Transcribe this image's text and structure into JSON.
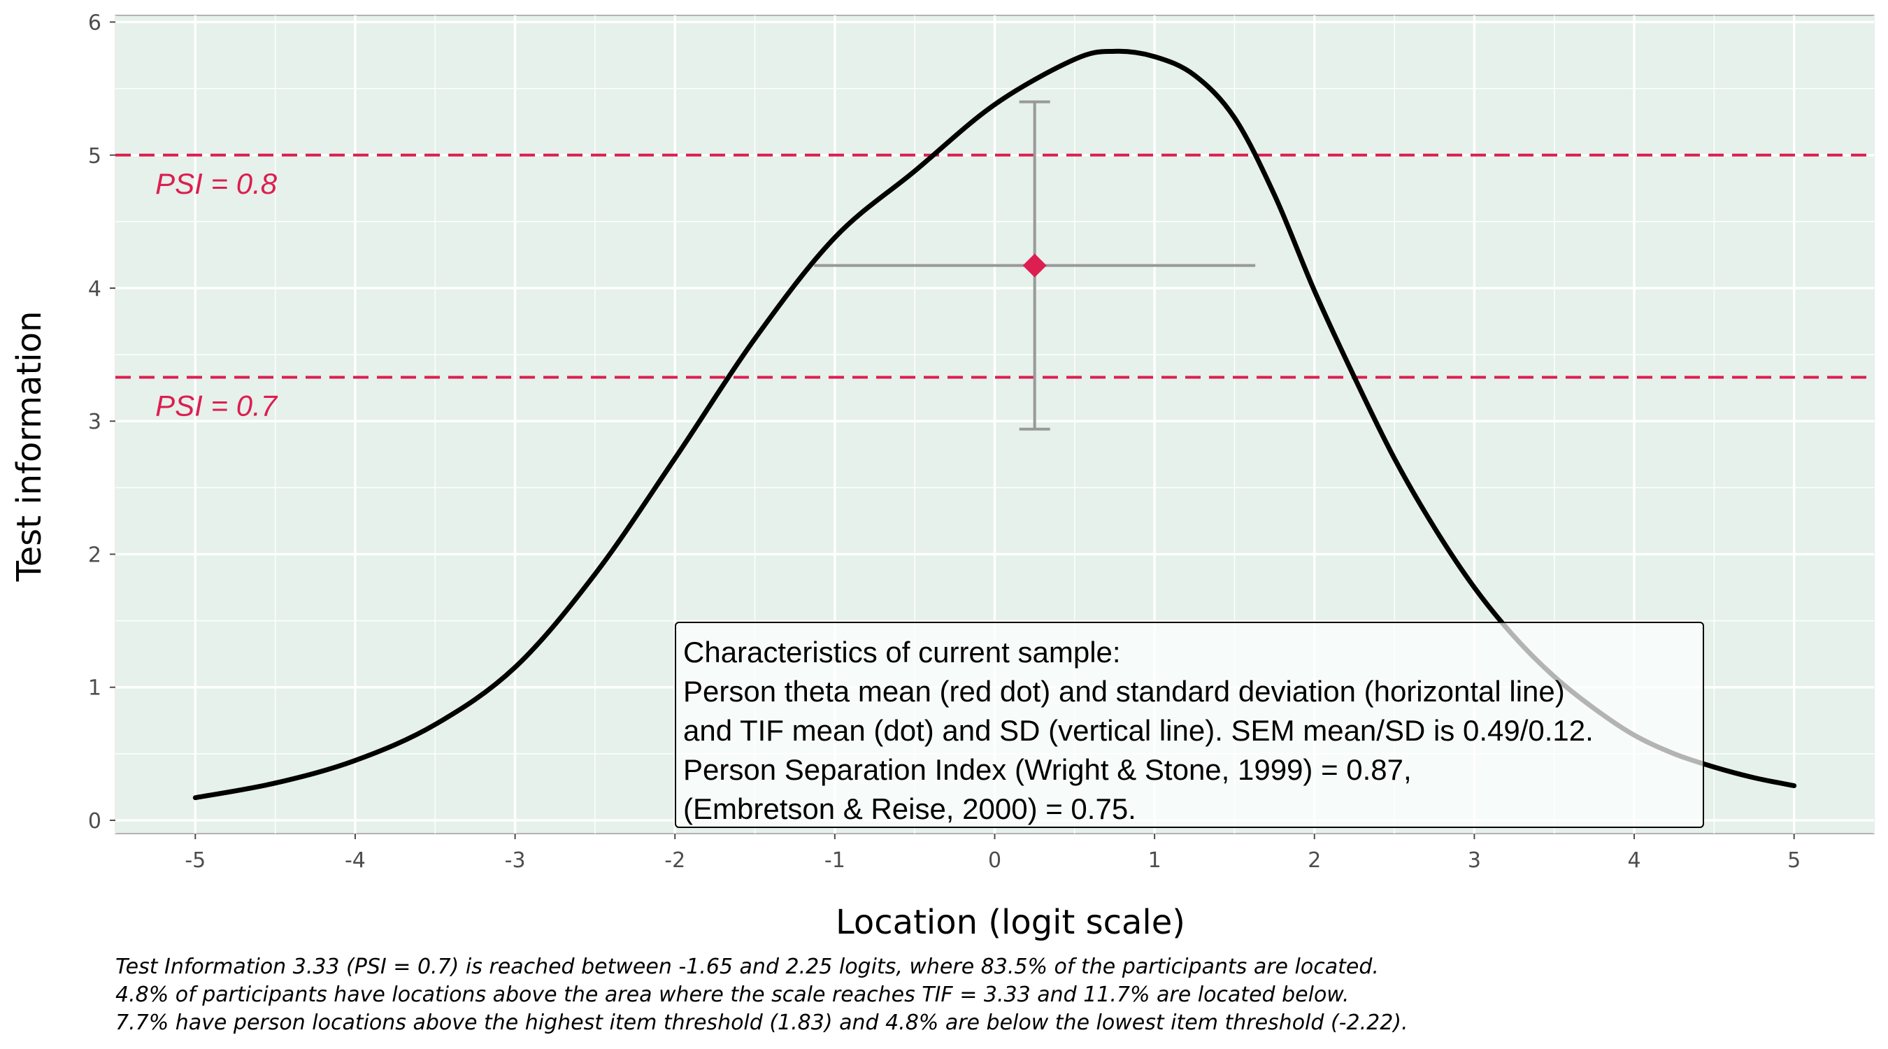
{
  "chart_data": {
    "type": "line",
    "xlabel": "Location (logit scale)",
    "ylabel": "Test information",
    "xlim": [
      -5.5,
      5.5
    ],
    "ylim": [
      -0.1,
      6.05
    ],
    "xticks": [
      -5,
      -4,
      -3,
      -2,
      -1,
      0,
      1,
      2,
      3,
      4,
      5
    ],
    "yticks": [
      0,
      1,
      2,
      3,
      4,
      5,
      6
    ],
    "grid": true,
    "series": [
      {
        "values": [
          [
            -5.0,
            0.17
          ],
          [
            -4.5,
            0.28
          ],
          [
            -4.0,
            0.45
          ],
          [
            -3.5,
            0.72
          ],
          [
            -3.0,
            1.15
          ],
          [
            -2.5,
            1.85
          ],
          [
            -2.0,
            2.72
          ],
          [
            -1.5,
            3.62
          ],
          [
            -1.0,
            4.38
          ],
          [
            -0.5,
            4.88
          ],
          [
            0.0,
            5.38
          ],
          [
            0.5,
            5.72
          ],
          [
            0.75,
            5.78
          ],
          [
            1.0,
            5.74
          ],
          [
            1.25,
            5.6
          ],
          [
            1.5,
            5.28
          ],
          [
            1.75,
            4.7
          ],
          [
            2.0,
            3.98
          ],
          [
            2.25,
            3.33
          ],
          [
            2.5,
            2.72
          ],
          [
            2.75,
            2.2
          ],
          [
            3.0,
            1.75
          ],
          [
            3.25,
            1.38
          ],
          [
            3.5,
            1.08
          ],
          [
            3.75,
            0.84
          ],
          [
            4.0,
            0.64
          ],
          [
            4.25,
            0.5
          ],
          [
            4.5,
            0.4
          ],
          [
            4.75,
            0.32
          ],
          [
            5.0,
            0.26
          ]
        ]
      }
    ],
    "reference_lines": [
      {
        "y": 5.0,
        "label": "PSI = 0.8",
        "style": "dashed",
        "color": "#dc1e50"
      },
      {
        "y": 3.33,
        "label": "PSI = 0.7",
        "style": "dashed",
        "color": "#dc1e50"
      }
    ],
    "marker": {
      "x": 0.25,
      "y": 4.17,
      "x_sd_range": [
        -1.13,
        1.63
      ],
      "y_sd_range": [
        2.94,
        5.4
      ],
      "color": "#dc1e50",
      "errorbar_color": "#999999"
    },
    "annotation": [
      "Characteristics of current sample:",
      "Person theta mean (red dot) and standard deviation (horizontal line)",
      "and TIF mean (dot) and SD (vertical line). SEM mean/SD is 0.49/0.12.",
      "Person Separation Index (Wright & Stone, 1999) = 0.87,",
      "(Embretson & Reise, 2000) = 0.75."
    ],
    "caption": [
      "Test Information 3.33 (PSI = 0.7) is reached between -1.65 and 2.25 logits, where 83.5% of the participants are located.",
      "4.8% of participants have locations above the area where the scale reaches TIF = 3.33 and 11.7% are located below.",
      "7.7% have person locations above the highest item threshold (1.83) and 4.8% are below the lowest item threshold (-2.22)."
    ],
    "colors": {
      "panel": "#e5f1ea",
      "grid": "#ffffff",
      "curve": "#000000",
      "reference": "#dc1e50"
    }
  }
}
